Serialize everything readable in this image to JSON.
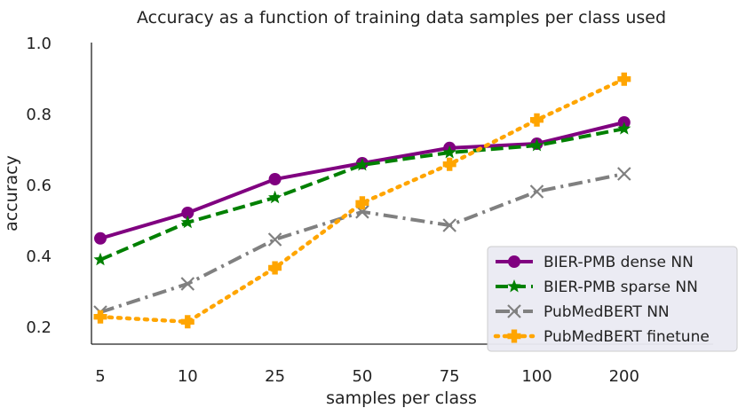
{
  "chart_data": {
    "type": "line",
    "title": "Accuracy as a function of training data samples per class used",
    "xlabel": "samples per class",
    "ylabel": "accuracy",
    "categories": [
      "5",
      "10",
      "25",
      "50",
      "75",
      "100",
      "200"
    ],
    "y_ticks": [
      "0.2",
      "0.4",
      "0.6",
      "0.8",
      "1.0"
    ],
    "y_tick_values": [
      0.2,
      0.4,
      0.6,
      0.8,
      1.0
    ],
    "ylim": [
      0.15,
      1.0
    ],
    "legend_position": "bottom-right",
    "series": [
      {
        "name": "BIER-PMB dense NN",
        "color": "#800080",
        "linestyle": "solid",
        "marker": "circle",
        "values": [
          0.448,
          0.52,
          0.615,
          0.66,
          0.703,
          0.715,
          0.775
        ]
      },
      {
        "name": "BIER-PMB sparse NN",
        "color": "#008000",
        "linestyle": "dashed",
        "marker": "star",
        "values": [
          0.388,
          0.493,
          0.563,
          0.655,
          0.69,
          0.71,
          0.757
        ]
      },
      {
        "name": "PubMedBERT NN",
        "color": "#808080",
        "linestyle": "dashdot",
        "marker": "x",
        "values": [
          0.24,
          0.32,
          0.445,
          0.523,
          0.485,
          0.58,
          0.63
        ]
      },
      {
        "name": "PubMedBERT finetune",
        "color": "#FFA500",
        "linestyle": "dotted",
        "marker": "plus",
        "values": [
          0.227,
          0.213,
          0.365,
          0.548,
          0.657,
          0.782,
          0.897
        ]
      }
    ]
  }
}
